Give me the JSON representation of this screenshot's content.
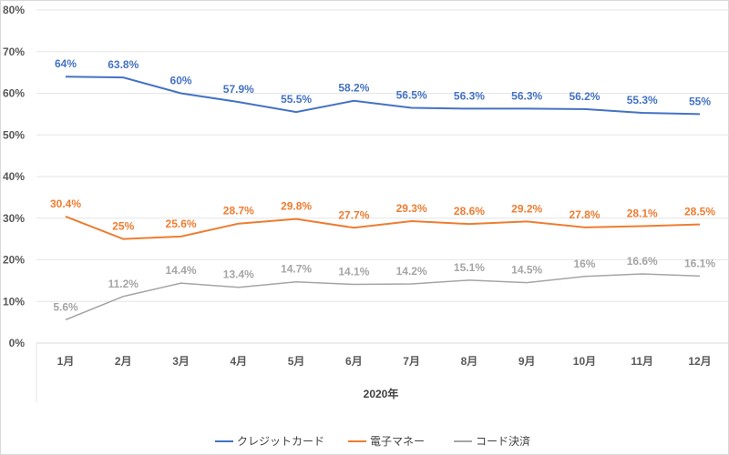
{
  "chart_data": {
    "type": "line",
    "title": "",
    "xlabel": "2020年",
    "ylabel": "",
    "ylim": [
      0,
      80
    ],
    "yticks": [
      "0%",
      "10%",
      "20%",
      "30%",
      "40%",
      "50%",
      "60%",
      "70%",
      "80%"
    ],
    "grid": true,
    "legend_position": "bottom",
    "categories": [
      "1月",
      "2月",
      "3月",
      "4月",
      "5月",
      "6月",
      "7月",
      "8月",
      "9月",
      "10月",
      "11月",
      "12月"
    ],
    "series": [
      {
        "name": "クレジットカード",
        "color": "#4472C4",
        "values": [
          64,
          63.8,
          60,
          57.9,
          55.5,
          58.2,
          56.5,
          56.3,
          56.3,
          56.2,
          55.3,
          55
        ],
        "labels": [
          "64%",
          "63.8%",
          "60%",
          "57.9%",
          "55.5%",
          "58.2%",
          "56.5%",
          "56.3%",
          "56.3%",
          "56.2%",
          "55.3%",
          "55%"
        ]
      },
      {
        "name": "電子マネー",
        "color": "#ED7D31",
        "values": [
          30.4,
          25,
          25.6,
          28.7,
          29.8,
          27.7,
          29.3,
          28.6,
          29.2,
          27.8,
          28.1,
          28.5
        ],
        "labels": [
          "30.4%",
          "25%",
          "25.6%",
          "28.7%",
          "29.8%",
          "27.7%",
          "29.3%",
          "28.6%",
          "29.2%",
          "27.8%",
          "28.1%",
          "28.5%"
        ]
      },
      {
        "name": "コード決済",
        "color": "#A5A5A5",
        "values": [
          5.6,
          11.2,
          14.4,
          13.4,
          14.7,
          14.1,
          14.2,
          15.1,
          14.5,
          16,
          16.6,
          16.1
        ],
        "labels": [
          "5.6%",
          "11.2%",
          "14.4%",
          "13.4%",
          "14.7%",
          "14.1%",
          "14.2%",
          "15.1%",
          "14.5%",
          "16%",
          "16.6%",
          "16.1%"
        ]
      }
    ]
  }
}
